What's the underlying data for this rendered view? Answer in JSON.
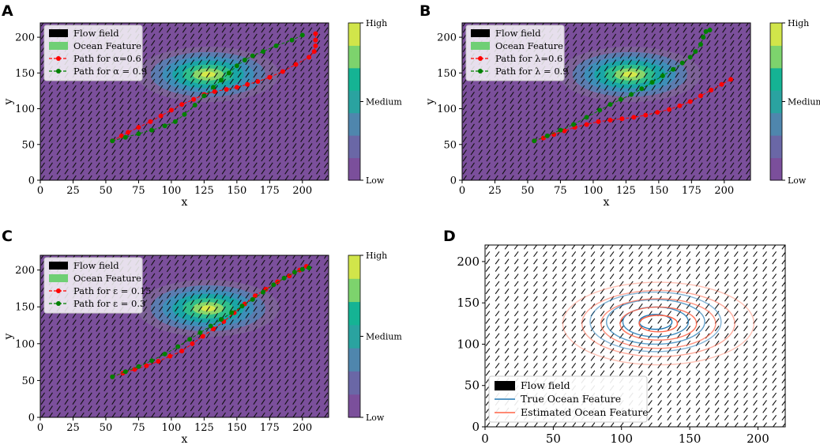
{
  "chart_data": [
    {
      "panel": "A",
      "type": "line",
      "xlabel": "x",
      "ylabel": "y",
      "xlim": [
        0,
        220
      ],
      "ylim": [
        0,
        220
      ],
      "xticks": [
        0,
        25,
        50,
        75,
        100,
        125,
        150,
        175,
        200
      ],
      "yticks": [
        0,
        50,
        100,
        150,
        200
      ],
      "colorbar": {
        "labels": [
          "Low",
          "Medium",
          "High"
        ]
      },
      "feature_center": [
        128,
        148
      ],
      "legend": [
        "Flow field",
        "Ocean Feature",
        "Path for α=0.6",
        "Path for α = 0.9"
      ],
      "series": [
        {
          "name": "Path for α=0.6",
          "color": "#ff0000",
          "x": [
            55,
            62,
            67,
            75,
            84,
            92,
            100,
            108,
            117,
            125,
            133,
            142,
            150,
            158,
            166,
            175,
            185,
            195,
            205,
            209,
            210,
            210,
            210
          ],
          "y": [
            55,
            62,
            67,
            74,
            82,
            90,
            98,
            106,
            113,
            120,
            124,
            127,
            130,
            134,
            138,
            144,
            152,
            162,
            172,
            180,
            188,
            196,
            205
          ]
        },
        {
          "name": "Path for α = 0.9",
          "color": "#008000",
          "x": [
            55,
            65,
            75,
            85,
            95,
            103,
            110,
            118,
            125,
            132,
            138,
            144,
            150,
            156,
            162,
            170,
            180,
            192,
            200
          ],
          "y": [
            55,
            60,
            65,
            70,
            76,
            82,
            92,
            105,
            118,
            130,
            140,
            150,
            160,
            168,
            174,
            180,
            188,
            196,
            203
          ]
        }
      ]
    },
    {
      "panel": "B",
      "type": "line",
      "xlabel": "x",
      "ylabel": "y",
      "xlim": [
        0,
        220
      ],
      "ylim": [
        0,
        220
      ],
      "xticks": [
        0,
        25,
        50,
        75,
        100,
        125,
        150,
        175,
        200
      ],
      "yticks": [
        0,
        50,
        100,
        150,
        200
      ],
      "colorbar": {
        "labels": [
          "Low",
          "Medium",
          "High"
        ]
      },
      "feature_center": [
        128,
        148
      ],
      "legend": [
        "Flow field",
        "Ocean Feature",
        "Path for λ=0.6",
        "Path for λ = 0.9"
      ],
      "series": [
        {
          "name": "Path for λ=0.6",
          "color": "#ff0000",
          "x": [
            55,
            62,
            70,
            78,
            86,
            95,
            104,
            113,
            122,
            131,
            140,
            149,
            158,
            166,
            174,
            182,
            190,
            198,
            205
          ],
          "y": [
            55,
            59,
            64,
            69,
            74,
            78,
            82,
            84,
            86,
            88,
            91,
            95,
            99,
            104,
            110,
            118,
            126,
            134,
            141
          ]
        },
        {
          "name": "Path for λ = 0.9",
          "color": "#008000",
          "x": [
            55,
            65,
            75,
            85,
            95,
            105,
            113,
            121,
            129,
            137,
            145,
            153,
            161,
            168,
            174,
            178,
            182,
            184,
            186,
            189
          ],
          "y": [
            55,
            62,
            70,
            78,
            88,
            98,
            106,
            113,
            120,
            128,
            137,
            146,
            155,
            164,
            172,
            180,
            190,
            200,
            208,
            210
          ]
        }
      ]
    },
    {
      "panel": "C",
      "type": "line",
      "xlabel": "x",
      "ylabel": "y",
      "xlim": [
        0,
        220
      ],
      "ylim": [
        0,
        220
      ],
      "xticks": [
        0,
        25,
        50,
        75,
        100,
        125,
        150,
        175,
        200
      ],
      "yticks": [
        0,
        50,
        100,
        150,
        200
      ],
      "colorbar": {
        "labels": [
          "Low",
          "Medium",
          "High"
        ]
      },
      "feature_center": [
        128,
        148
      ],
      "legend": [
        "Flow field",
        "Ocean Feature",
        "Path for ε = 0.15",
        "Path for ε = 0.3"
      ],
      "series": [
        {
          "name": "Path for ε = 0.15",
          "color": "#ff0000",
          "x": [
            55,
            63,
            72,
            81,
            90,
            99,
            108,
            116,
            124,
            132,
            140,
            148,
            156,
            164,
            172,
            181,
            190,
            198,
            203
          ],
          "y": [
            55,
            60,
            65,
            70,
            76,
            83,
            90,
            100,
            110,
            120,
            130,
            142,
            154,
            165,
            174,
            184,
            192,
            200,
            205
          ]
        },
        {
          "name": "Path for ε = 0.3",
          "color": "#008000",
          "x": [
            55,
            65,
            75,
            85,
            95,
            105,
            114,
            122,
            130,
            138,
            146,
            154,
            162,
            170,
            178,
            186,
            194,
            200,
            205
          ],
          "y": [
            55,
            62,
            69,
            77,
            86,
            96,
            106,
            115,
            124,
            133,
            142,
            151,
            160,
            170,
            180,
            189,
            197,
            201,
            203
          ]
        }
      ]
    },
    {
      "panel": "D",
      "type": "contour",
      "xlim": [
        0,
        220
      ],
      "ylim": [
        0,
        220
      ],
      "xticks": [
        0,
        50,
        100,
        150,
        200
      ],
      "yticks": [
        0,
        50,
        100,
        150,
        200
      ],
      "legend": [
        "Flow field",
        "True Ocean Feature",
        "Estimated Ocean Feature"
      ],
      "series": [
        {
          "name": "True Ocean Feature",
          "color": "#1f77b4",
          "center": [
            125,
            127
          ],
          "radii": [
            [
              12,
              9
            ],
            [
              24,
              18
            ],
            [
              36,
              27
            ],
            [
              48,
              36
            ]
          ]
        },
        {
          "name": "Estimated Ocean Feature",
          "color": "#ff6347",
          "center": [
            127,
            125
          ],
          "radii": [
            [
              14,
              10
            ],
            [
              28,
              20
            ],
            [
              42,
              30
            ],
            [
              56,
              40
            ],
            [
              70,
              50
            ]
          ]
        }
      ]
    }
  ]
}
